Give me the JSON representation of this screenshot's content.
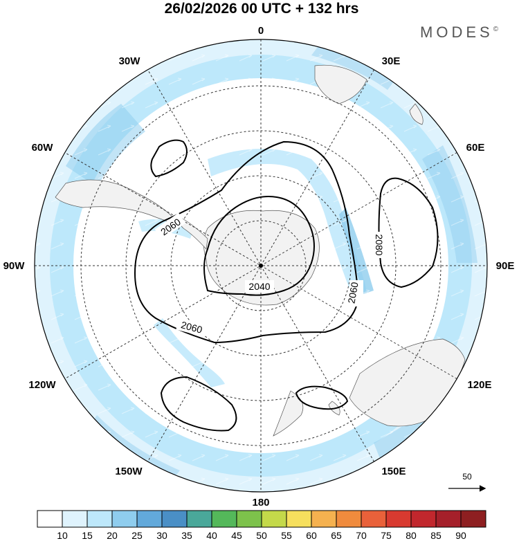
{
  "title": "26/02/2026  00 UTC  + 132 hrs",
  "brand": {
    "name": "MODES",
    "mark": "©"
  },
  "longitude_labels": {
    "n0": "0",
    "e30": "30E",
    "e60": "60E",
    "e90": "90E",
    "e120": "120E",
    "e150": "150E",
    "s180": "180",
    "w150": "150W",
    "w120": "120W",
    "w90": "90W",
    "w60": "60W",
    "w30": "30W"
  },
  "contour_labels": {
    "c1": "2060",
    "c2": "2080",
    "c3": "2060",
    "c4": "2040",
    "c5": "2060"
  },
  "reference_vector": {
    "label": "50"
  },
  "colorbar": {
    "colors": [
      "#ffffff",
      "#dff3fd",
      "#bde8fb",
      "#8fcdee",
      "#62a9db",
      "#4a8fc6",
      "#4aa89a",
      "#54b85a",
      "#7dc24b",
      "#c4d94a",
      "#f6df5d",
      "#f5b14f",
      "#f08b3d",
      "#e9613a",
      "#d83a30",
      "#c1272d",
      "#a5202a",
      "#8e1f21"
    ],
    "labels": [
      "10",
      "15",
      "20",
      "25",
      "30",
      "35",
      "40",
      "45",
      "50",
      "55",
      "60",
      "65",
      "70",
      "75",
      "80",
      "85",
      "90"
    ]
  },
  "icons": {
    "pole": "pole-marker-icon",
    "arrow": "reference-arrow-icon"
  }
}
